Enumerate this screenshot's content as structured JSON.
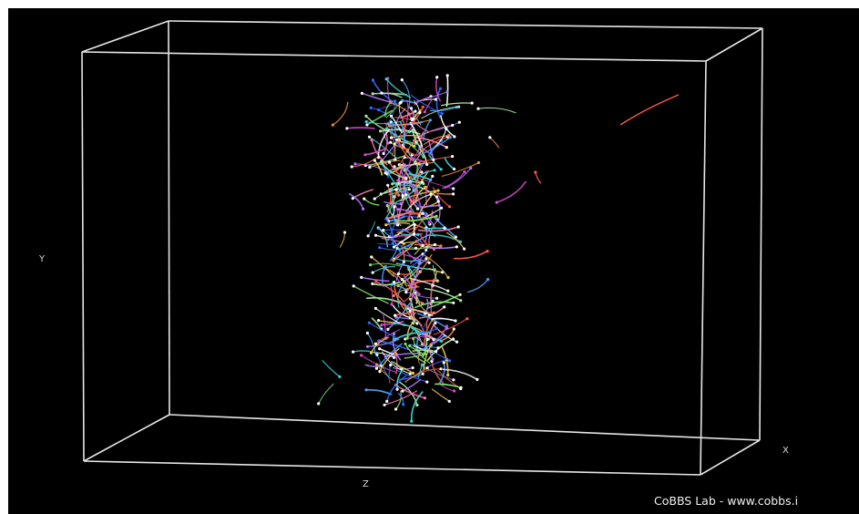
{
  "chart_data": {
    "type": "3d-trajectories",
    "axes": {
      "x": "X",
      "y": "Y",
      "z": "Z"
    },
    "background": "#000000",
    "box_color": "#e6e6e6",
    "series_colors": [
      "#2e6bff",
      "#7ee06a",
      "#ffffff",
      "#d94cd6",
      "#3fd0d8",
      "#ff5a4a",
      "#f2c94c",
      "#b07cff",
      "#f08a3c",
      "#a9e8a0",
      "#ff7bb0",
      "#4aa3ff"
    ]
  },
  "credit": "CoBBS Lab - www.cobbs.i"
}
